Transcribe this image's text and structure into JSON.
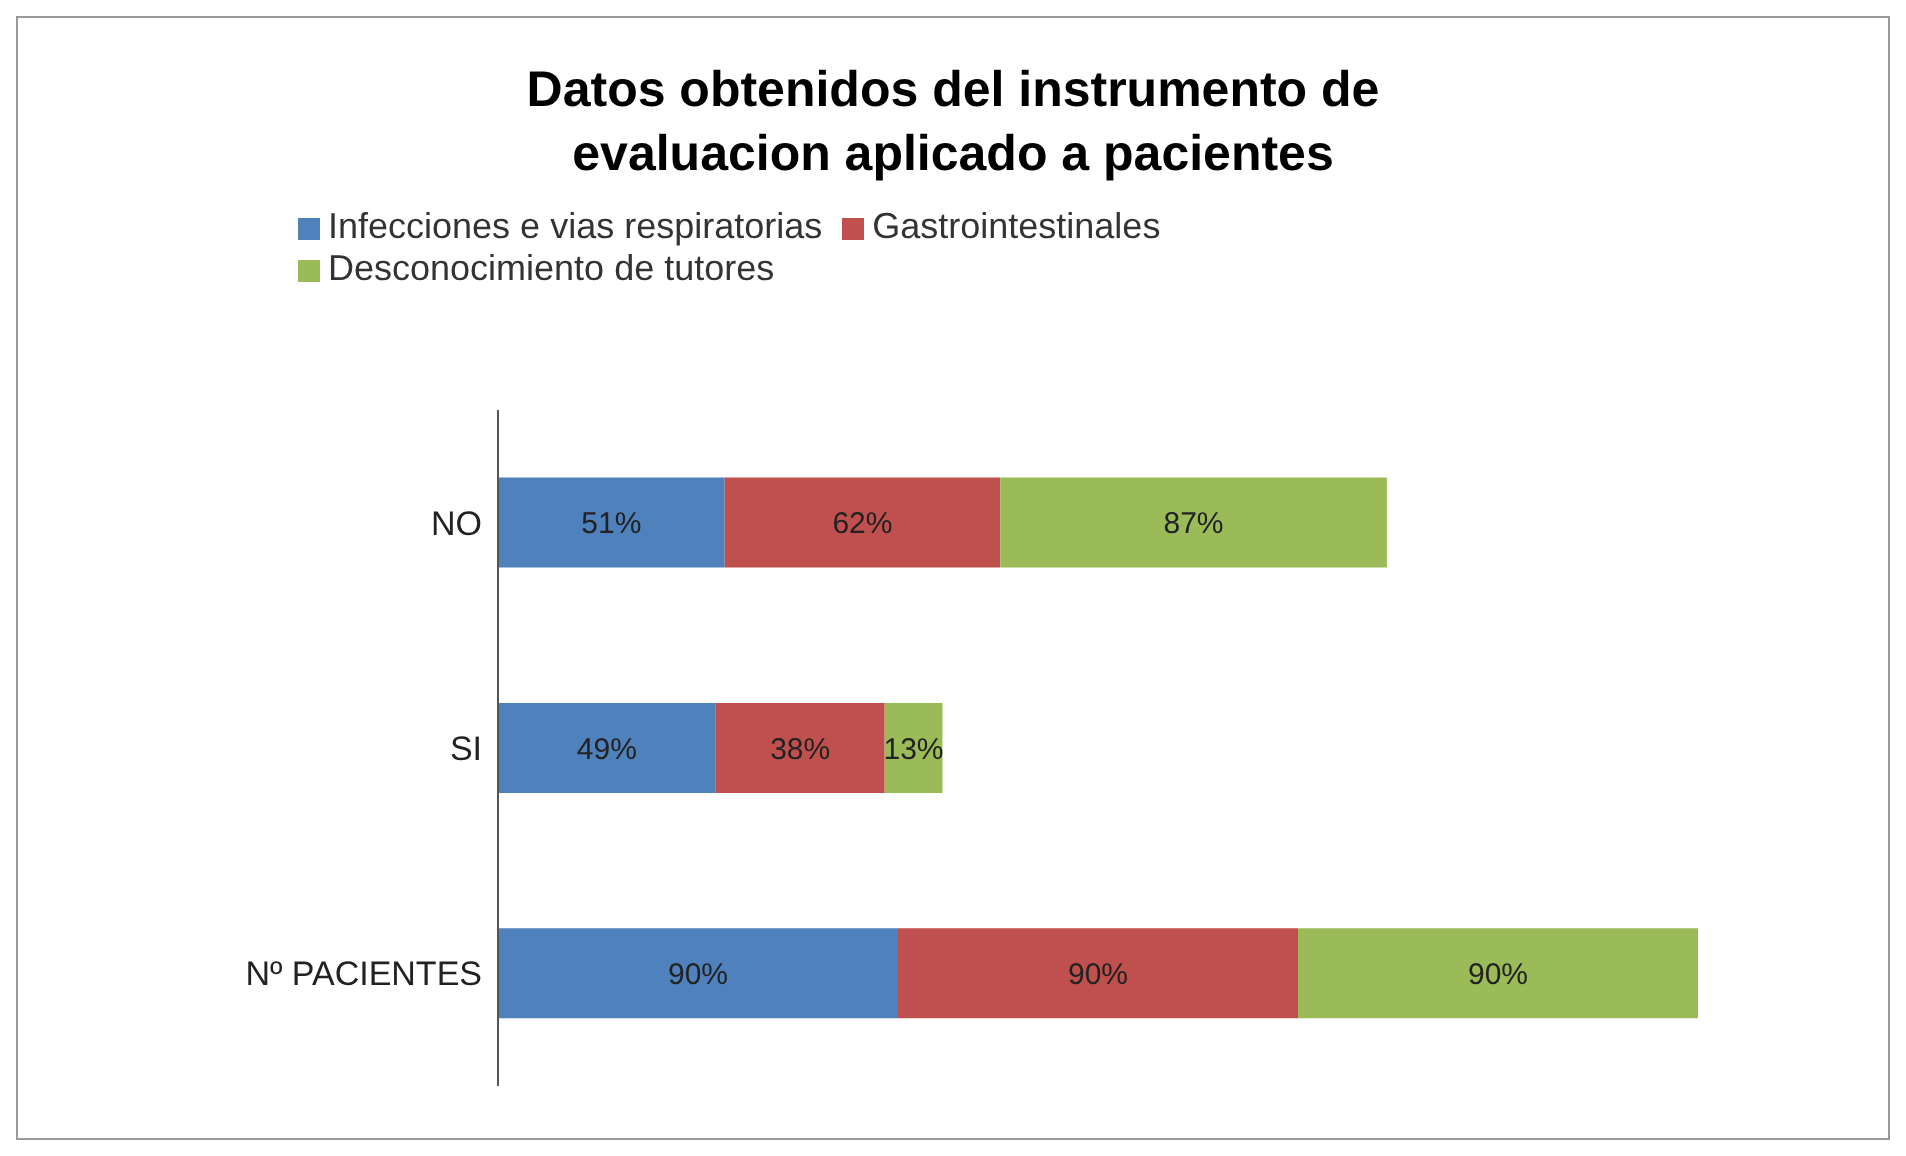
{
  "chart_data": {
    "type": "bar",
    "orientation": "horizontal",
    "stacked": true,
    "title": "Datos obtenidos del instrumento de evaluacion aplicado a pacientes",
    "categories": [
      "NO",
      "SI",
      "Nº PACIENTES"
    ],
    "series": [
      {
        "name": "Infecciones e vias respiratorias",
        "color": "#4f81bd",
        "values": [
          51,
          49,
          90
        ],
        "value_labels": [
          "51%",
          "49%",
          "90%"
        ]
      },
      {
        "name": "Gastrointestinales",
        "color": "#c0504d",
        "values": [
          62,
          38,
          90
        ],
        "value_labels": [
          "62%",
          "38%",
          "90%"
        ]
      },
      {
        "name": "Desconocimiento  de tutores",
        "color": "#9bbb59",
        "values": [
          87,
          13,
          90
        ],
        "value_labels": [
          "87%",
          "13%",
          "90%"
        ]
      }
    ],
    "legend": "top",
    "grid": false
  }
}
